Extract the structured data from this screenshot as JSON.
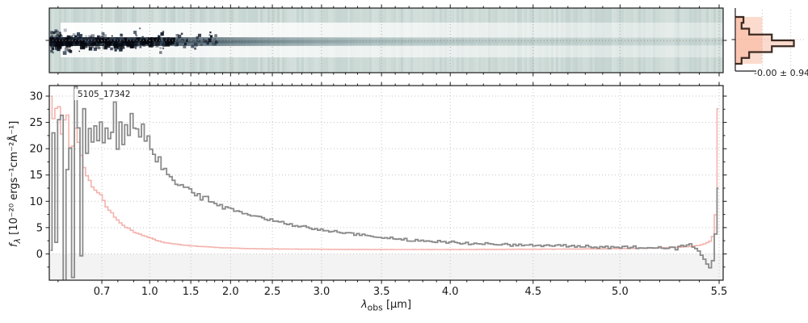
{
  "labels": {
    "source_id": "5105_17342",
    "profile_stat": "-0.00 ± 0.94",
    "x_axis": {
      "symbol": "λ",
      "subscript": "obs",
      "units": " [μm]"
    },
    "y_axis": {
      "symbol_main": "f",
      "symbol_sub": "λ",
      "units": " [10⁻²⁰ ergs⁻¹cm⁻²Å⁻¹]"
    }
  },
  "colors": {
    "spine": "#1a1a1a",
    "grid": "#c4c4c4",
    "grid_top": "#a8a49c",
    "center_dotted": "#9b8d80",
    "flux": "#8a8a8a",
    "error": "#f3b3ad",
    "bg2d": "#ccdad6",
    "trace_dark": "#10161f",
    "hist_edge": "#3b2a20",
    "hist_fill": "rgba(246,160,130,0.38)",
    "shade_below_zero": "#f3f3f3"
  },
  "chart_data": [
    {
      "type": "heatmap",
      "name": "spectrum_2d",
      "description": "Rectified 2D NIRSpec PRISM spectrum; dark source trace along center row, brightest at blue end, fading to the red; white background-subtraction bands above and below trace; pale teal colormap background",
      "trace_center_frac": 0.5,
      "xlim_um": [
        0.58,
        5.53
      ]
    },
    {
      "type": "line",
      "name": "spectrum_1d",
      "title": "5105_17342",
      "xlabel": "λ_obs [μm]",
      "ylabel": "f_λ [10⁻²⁰ ergs⁻¹cm⁻²Å⁻¹]",
      "x_scale": "nonlinear (prism pixel sampling)",
      "xticks": {
        "labels": [
          "0.7",
          "1.0",
          "1.5",
          "2.0",
          "2.5",
          "3.0",
          "3.5",
          "4.0",
          "4.5",
          "5.0",
          "5.5"
        ],
        "values": [
          0.7,
          1.0,
          1.5,
          2.0,
          2.5,
          3.0,
          3.5,
          4.0,
          4.5,
          5.0,
          5.5
        ],
        "fracs": [
          0.078,
          0.149,
          0.21,
          0.269,
          0.331,
          0.404,
          0.493,
          0.595,
          0.718,
          0.847,
          0.994
        ]
      },
      "x_map_anchors": {
        "lam": [
          0.58,
          0.7,
          1.0,
          1.5,
          2.0,
          2.5,
          3.0,
          3.5,
          4.0,
          4.5,
          5.0,
          5.5,
          5.53
        ],
        "frac": [
          0,
          0.078,
          0.149,
          0.21,
          0.269,
          0.331,
          0.404,
          0.493,
          0.595,
          0.718,
          0.847,
          0.994,
          1.0
        ]
      },
      "ylim": [
        -5,
        32
      ],
      "yticks": [
        0,
        5,
        10,
        15,
        20,
        25,
        30
      ],
      "grid": true,
      "series": [
        {
          "name": "flux",
          "style": "steps",
          "x": [
            0.58,
            0.585,
            0.59,
            0.595,
            0.6,
            0.605,
            0.61,
            0.615,
            0.62,
            0.625,
            0.63,
            0.635,
            0.64,
            0.645,
            0.65,
            0.655,
            0.66,
            0.665,
            0.67,
            0.675,
            0.68,
            0.69,
            0.7,
            0.71,
            0.72,
            0.73,
            0.74,
            0.75,
            0.76,
            0.77,
            0.78,
            0.79,
            0.8,
            0.81,
            0.82,
            0.83,
            0.84,
            0.85,
            0.86,
            0.87,
            0.88,
            0.89,
            0.9,
            0.92,
            0.94,
            0.96,
            0.98,
            1.0,
            1.02,
            1.05,
            1.08,
            1.1,
            1.12,
            1.15,
            1.18,
            1.2,
            1.25,
            1.3,
            1.35,
            1.4,
            1.45,
            1.5,
            1.55,
            1.6,
            1.65,
            1.7,
            1.75,
            1.8,
            1.85,
            1.9,
            1.95,
            2.0,
            2.1,
            2.2,
            2.3,
            2.4,
            2.5,
            2.6,
            2.7,
            2.8,
            2.9,
            3.0,
            3.1,
            3.2,
            3.3,
            3.4,
            3.5,
            3.6,
            3.7,
            3.8,
            3.9,
            4.0,
            4.1,
            4.2,
            4.3,
            4.4,
            4.5,
            4.6,
            4.7,
            4.8,
            4.9,
            5.0,
            5.1,
            5.2,
            5.3,
            5.35,
            5.4,
            5.43,
            5.46,
            5.48,
            5.5
          ],
          "y": [
            12,
            -4,
            28,
            -5,
            33,
            8,
            33,
            -5,
            20,
            33,
            5,
            -5,
            25,
            33,
            12,
            -3,
            30,
            18,
            33,
            10,
            26,
            22,
            28,
            20,
            30,
            24,
            29,
            18,
            27,
            22,
            30,
            25,
            21,
            28,
            24,
            19,
            26,
            23,
            28,
            21,
            25,
            27,
            23,
            25,
            22,
            24,
            21,
            22.5,
            20,
            19,
            18,
            17.5,
            18.5,
            16.5,
            16,
            15.5,
            14.5,
            13.8,
            13.2,
            12.6,
            13.0,
            12.2,
            11.0,
            11.5,
            10.2,
            10.8,
            9.6,
            10.0,
            9.2,
            9.0,
            8.6,
            8.8,
            8.0,
            7.6,
            7.2,
            6.8,
            6.3,
            5.9,
            5.6,
            5.2,
            4.8,
            4.5,
            4.2,
            4.0,
            3.7,
            3.4,
            3.2,
            2.9,
            2.7,
            2.5,
            2.3,
            2.2,
            2.0,
            1.9,
            1.8,
            1.7,
            1.7,
            1.6,
            1.5,
            1.4,
            1.3,
            1.2,
            1.2,
            1.1,
            1.3,
            1.8,
            0.5,
            -1.5,
            -2.5,
            1.0,
            15
          ]
        },
        {
          "name": "error",
          "style": "steps",
          "x": [
            0.58,
            0.59,
            0.6,
            0.61,
            0.62,
            0.63,
            0.64,
            0.65,
            0.66,
            0.67,
            0.68,
            0.7,
            0.72,
            0.74,
            0.76,
            0.78,
            0.8,
            0.83,
            0.86,
            0.9,
            0.95,
            1.0,
            1.05,
            1.1,
            1.2,
            1.3,
            1.4,
            1.5,
            1.6,
            1.7,
            1.8,
            1.9,
            2.0,
            2.2,
            2.4,
            2.6,
            2.8,
            3.0,
            3.3,
            3.6,
            4.0,
            4.3,
            4.6,
            4.9,
            5.1,
            5.3,
            5.4,
            5.45,
            5.48,
            5.5
          ],
          "y": [
            32,
            25,
            30,
            22,
            28,
            18,
            24,
            20,
            16,
            14,
            12.5,
            11,
            9.5,
            8.5,
            7.8,
            7.0,
            6.4,
            5.6,
            5.0,
            4.2,
            3.6,
            3.1,
            2.8,
            2.5,
            2.1,
            1.9,
            1.7,
            1.55,
            1.45,
            1.35,
            1.25,
            1.18,
            1.12,
            1.02,
            0.96,
            0.92,
            0.9,
            0.88,
            0.85,
            0.84,
            0.84,
            0.86,
            0.9,
            0.96,
            1.05,
            1.25,
            1.6,
            2.2,
            4.0,
            32
          ]
        }
      ]
    },
    {
      "type": "bar",
      "name": "spatial_profile_histogram",
      "orientation": "horizontal",
      "values_frac": [
        0.13,
        0.1,
        0.22,
        0.58,
        0.93,
        0.58,
        0.22,
        0.1
      ],
      "stat": "-0.00 ± 0.94",
      "legend_position": "none"
    }
  ]
}
